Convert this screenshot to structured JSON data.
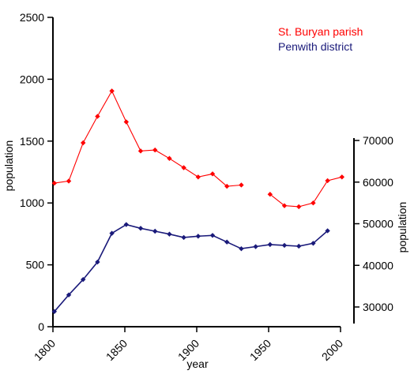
{
  "chart_data": {
    "type": "line",
    "xlabel": "year",
    "ylabel_left": "population",
    "ylabel_right": "population",
    "xlim": [
      1800,
      2000
    ],
    "x_ticks": [
      1800,
      1850,
      1900,
      1950,
      2000
    ],
    "ylim_left": [
      0,
      2500
    ],
    "y_ticks_left": [
      0,
      500,
      1000,
      1500,
      2000,
      2500
    ],
    "ylim_right": [
      26000,
      70000
    ],
    "y_ticks_right": [
      30000,
      40000,
      50000,
      60000,
      70000
    ],
    "grid": false,
    "legend_position": "top-right",
    "series": [
      {
        "name": "St. Buryan parish",
        "axis": "left",
        "color": "#ff0000",
        "marker": "diamond",
        "segments": [
          {
            "x": [
              1801,
              1811,
              1821,
              1831,
              1841,
              1851,
              1861,
              1871,
              1881,
              1891,
              1901,
              1911,
              1921,
              1931
            ],
            "y": [
              1160,
              1177,
              1486,
              1700,
              1905,
              1655,
              1420,
              1428,
              1360,
              1285,
              1210,
              1235,
              1135,
              1145
            ]
          },
          {
            "x": [
              1951,
              1961,
              1971,
              1981,
              1991,
              2001
            ],
            "y": [
              1070,
              978,
              970,
              1000,
              1180,
              1210
            ]
          }
        ]
      },
      {
        "name": "Penwith district",
        "axis": "right",
        "color": "#1a1a7a",
        "marker": "diamond",
        "segments": [
          {
            "x": [
              1801,
              1811,
              1821,
              1831,
              1841,
              1851,
              1861,
              1871,
              1881,
              1891,
              1901,
              1911,
              1921,
              1931,
              1941,
              1951,
              1961,
              1971,
              1981,
              1991
            ],
            "y": [
              28900,
              32900,
              36600,
              40800,
              47700,
              49800,
              48900,
              48200,
              47500,
              46700,
              47000,
              47200,
              45600,
              44000,
              44500,
              45000,
              44800,
              44600,
              45300,
              48300
            ]
          }
        ]
      }
    ]
  }
}
